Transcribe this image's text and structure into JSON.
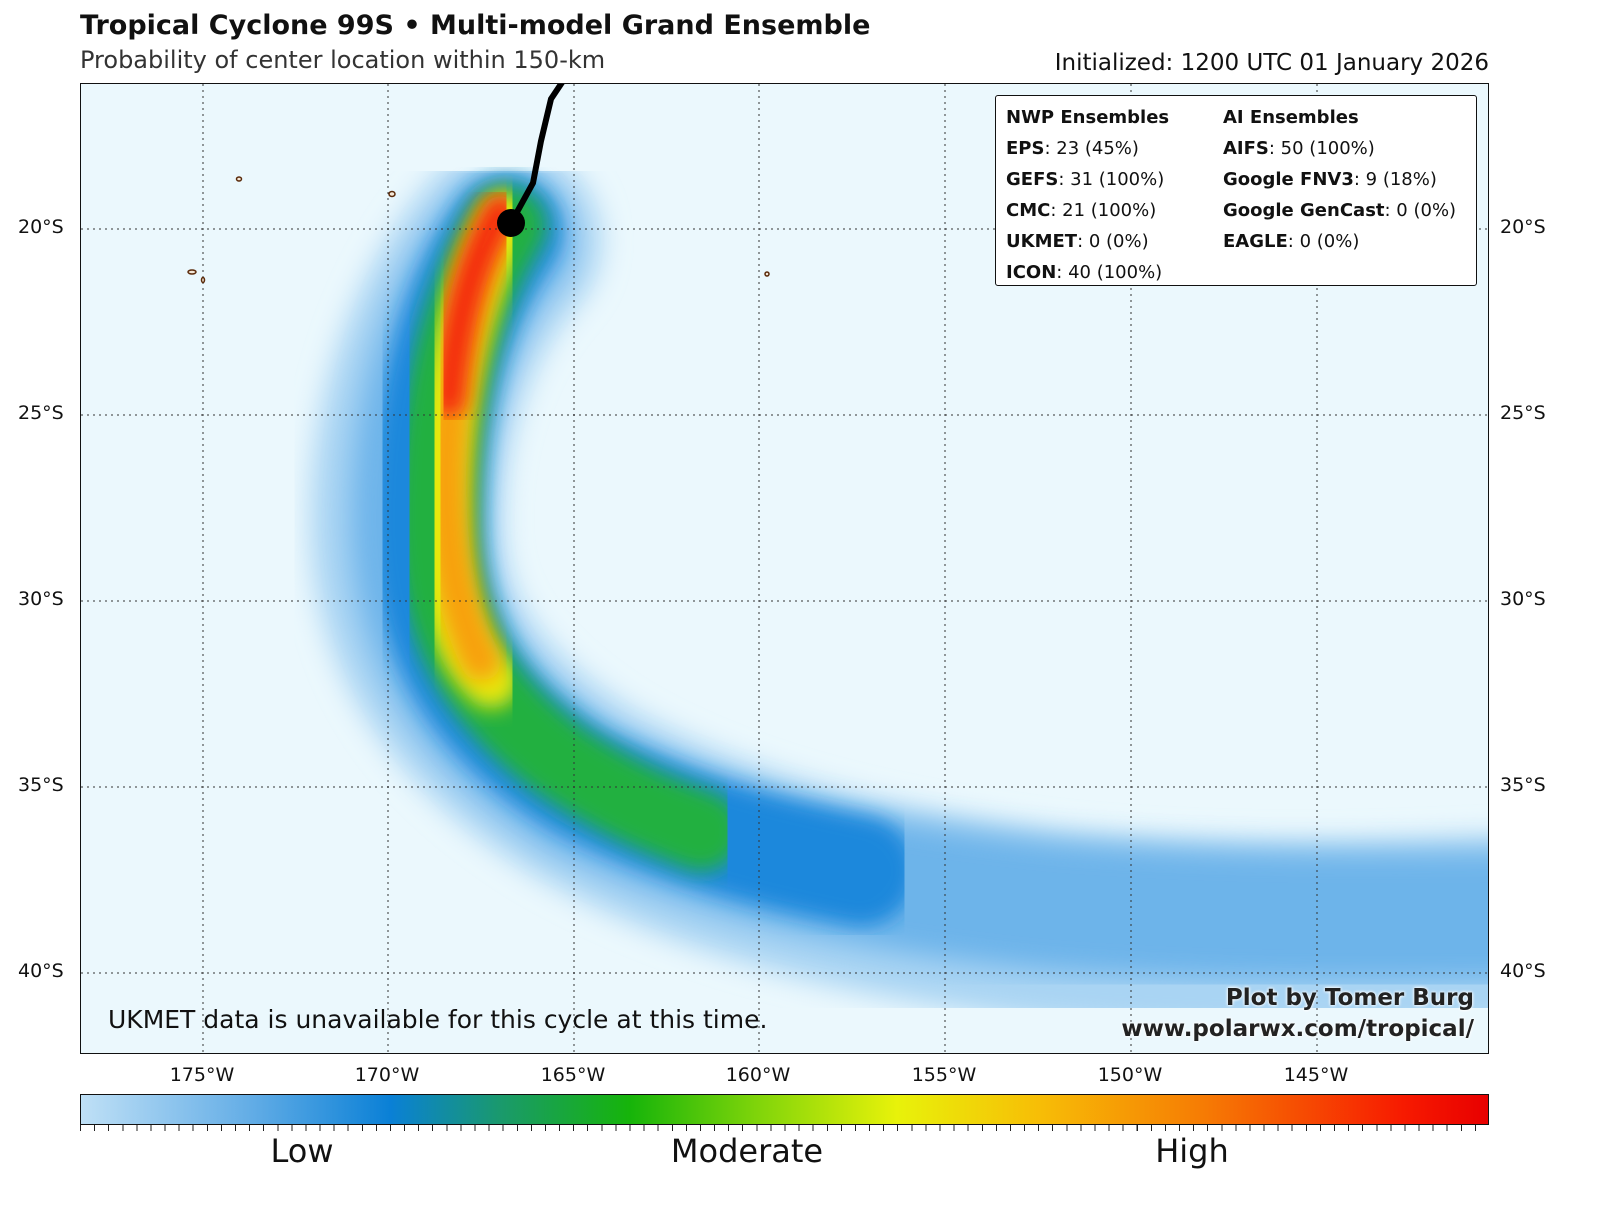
{
  "header": {
    "title": "Tropical Cyclone 99S • Multi-model Grand Ensemble",
    "subtitle": "Probability of center location within 150-km",
    "initialized": "Initialized: 1200 UTC 01 January 2026"
  },
  "axes": {
    "lat_labels": [
      "20°S",
      "25°S",
      "30°S",
      "35°S",
      "40°S"
    ],
    "lon_labels": [
      "175°W",
      "170°W",
      "165°W",
      "160°W",
      "155°W",
      "150°W",
      "145°W"
    ]
  },
  "legend": {
    "nwp_title": "NWP Ensembles",
    "nwp": [
      {
        "name": "EPS",
        "value": ": 23 (45%)"
      },
      {
        "name": "GEFS",
        "value": ": 31 (100%)"
      },
      {
        "name": "CMC",
        "value": ": 21 (100%)"
      },
      {
        "name": "UKMET",
        "value": ": 0 (0%)"
      },
      {
        "name": "ICON",
        "value": ": 40 (100%)"
      }
    ],
    "ai_title": "AI Ensembles",
    "ai": [
      {
        "name": "AIFS",
        "value": ": 50 (100%)"
      },
      {
        "name": "Google FNV3",
        "value": ": 9 (18%)"
      },
      {
        "name": "Google GenCast",
        "value": ": 0 (0%)"
      },
      {
        "name": "EAGLE",
        "value": ": 0 (0%)"
      }
    ]
  },
  "annotations": {
    "note": "UKMET data is unavailable for this cycle at this time.",
    "credit_line1": "Plot by Tomer Burg",
    "credit_line2": "www.polarwx.com/tropical/"
  },
  "colorbar": {
    "labels": [
      "Low",
      "Moderate",
      "High"
    ]
  },
  "colors": {
    "ocean": "#ebf8fd",
    "track": "#000000",
    "land_outline": "#5a2a0a"
  }
}
